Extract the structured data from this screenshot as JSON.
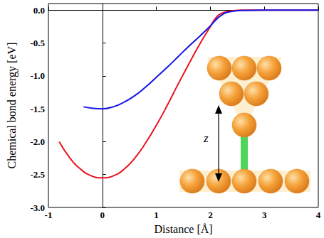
{
  "chart_data": {
    "type": "line",
    "x_label": "Distance [Å]",
    "y_label": "Chemical bond energy [eV]",
    "xlim": [
      -1,
      4
    ],
    "xticks": [
      -1,
      0,
      1,
      2,
      3,
      4
    ],
    "ylim": [
      -3.0,
      0.1
    ],
    "yticks": [
      {
        "value": -3.0,
        "label": "-3.0"
      },
      {
        "value": -2.5,
        "label": "-2.5"
      },
      {
        "value": -2.0,
        "label": "-2.0"
      },
      {
        "value": -1.5,
        "label": "-1.5"
      },
      {
        "value": -1.0,
        "label": "-1.0"
      },
      {
        "value": -0.5,
        "label": "-0.5"
      },
      {
        "value": 0.0,
        "label": "0.0"
      }
    ],
    "grid": false,
    "annotations": [
      {
        "text": "z"
      }
    ],
    "series": [
      {
        "color": "#e8141c",
        "line_style": "solid",
        "x": [
          -0.8,
          -0.6,
          -0.4,
          -0.2,
          0,
          0.2,
          0.4,
          0.6,
          0.8,
          1.0,
          1.2,
          1.4,
          1.6,
          1.8,
          2.0,
          2.1,
          2.2,
          2.4,
          2.6,
          3,
          4
        ],
        "values": [
          -2.0,
          -2.25,
          -2.42,
          -2.52,
          -2.55,
          -2.52,
          -2.42,
          -2.25,
          -2.02,
          -1.75,
          -1.45,
          -1.13,
          -0.82,
          -0.52,
          -0.25,
          -0.12,
          -0.05,
          -0.01,
          0,
          0,
          0
        ]
      },
      {
        "color": "#1414e8",
        "line_style": "solid",
        "x": [
          -0.35,
          -0.2,
          0,
          0.2,
          0.4,
          0.6,
          0.8,
          1.0,
          1.2,
          1.4,
          1.6,
          1.8,
          2.0,
          2.2,
          2.4,
          2.6,
          3,
          4
        ],
        "values": [
          -1.47,
          -1.49,
          -1.5,
          -1.47,
          -1.4,
          -1.3,
          -1.17,
          -1.02,
          -0.87,
          -0.71,
          -0.55,
          -0.4,
          -0.24,
          -0.08,
          -0.02,
          -0.005,
          0,
          0
        ]
      }
    ]
  }
}
